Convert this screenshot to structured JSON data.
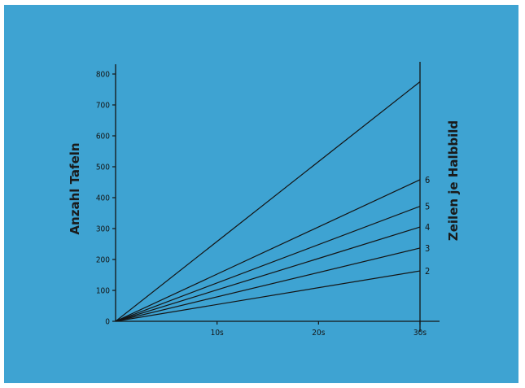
{
  "chart_data": {
    "type": "line",
    "title": "",
    "ylabel": "Anzahl Tafeln",
    "y2label": "Zeilen je Halbbild",
    "xlabel": "",
    "xlim": [
      0,
      30
    ],
    "ylim": [
      0,
      840
    ],
    "x_ticks": [
      {
        "value": 10,
        "label": "10s"
      },
      {
        "value": 20,
        "label": "20s"
      },
      {
        "value": 30,
        "label": "30s"
      }
    ],
    "y_ticks": [
      0,
      100,
      200,
      300,
      400,
      500,
      600,
      700,
      800
    ],
    "grid": false,
    "legend": "none",
    "series": [
      {
        "label": "",
        "x": [
          0,
          30
        ],
        "y": [
          0,
          775
        ]
      },
      {
        "label": "6",
        "x": [
          0,
          30
        ],
        "y": [
          0,
          458
        ]
      },
      {
        "label": "5",
        "x": [
          0,
          30
        ],
        "y": [
          0,
          372
        ]
      },
      {
        "label": "4",
        "x": [
          0,
          30
        ],
        "y": [
          0,
          305
        ]
      },
      {
        "label": "3",
        "x": [
          0,
          30
        ],
        "y": [
          0,
          237
        ]
      },
      {
        "label": "2",
        "x": [
          0,
          30
        ],
        "y": [
          0,
          163
        ]
      }
    ]
  },
  "colors": {
    "background": "#3ea3d2",
    "ink": "#141414"
  }
}
